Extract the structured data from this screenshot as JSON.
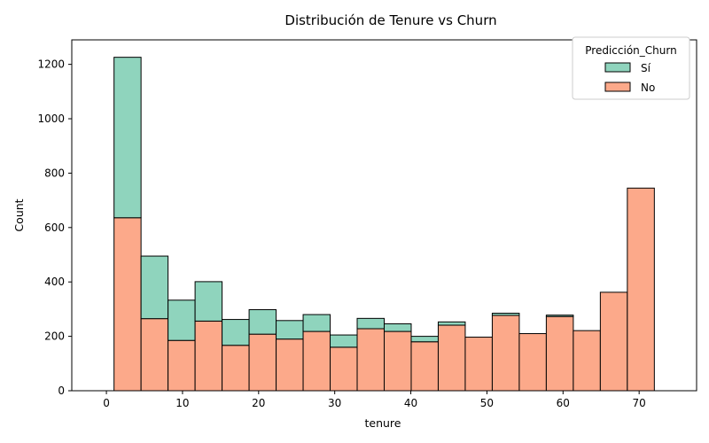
{
  "colors": {
    "si": "#8fd4bd",
    "no": "#fca98a",
    "edge": "#000000"
  },
  "chart_data": {
    "type": "bar",
    "stacked": true,
    "title": "Distribución de Tenure vs Churn",
    "xlabel": "tenure",
    "ylabel": "Count",
    "xlim": [
      -4.55,
      77.55
    ],
    "ylim": [
      0,
      1290
    ],
    "xticks": [
      0,
      10,
      20,
      30,
      40,
      50,
      60,
      70
    ],
    "yticks": [
      0,
      200,
      400,
      600,
      800,
      1000,
      1200
    ],
    "grid": false,
    "legend": {
      "title": "Predicción_Churn",
      "placement": "top-right"
    },
    "bin_edges": [
      1,
      4.55,
      8.1,
      11.65,
      15.2,
      18.75,
      22.3,
      25.85,
      29.4,
      32.95,
      36.5,
      40.05,
      43.6,
      47.15,
      50.7,
      54.25,
      57.8,
      61.35,
      64.9,
      68.45,
      72
    ],
    "series": [
      {
        "name": "Sí",
        "color": "#8fd4bd",
        "values": [
          590,
          230,
          148,
          145,
          95,
          90,
          68,
          62,
          45,
          38,
          28,
          20,
          12,
          0,
          8,
          0,
          5,
          0,
          0,
          0
        ]
      },
      {
        "name": "No",
        "color": "#fca98a",
        "values": [
          636,
          265,
          185,
          256,
          167,
          208,
          190,
          218,
          160,
          228,
          218,
          180,
          241,
          197,
          277,
          210,
          273,
          221,
          362,
          745
        ]
      }
    ]
  }
}
